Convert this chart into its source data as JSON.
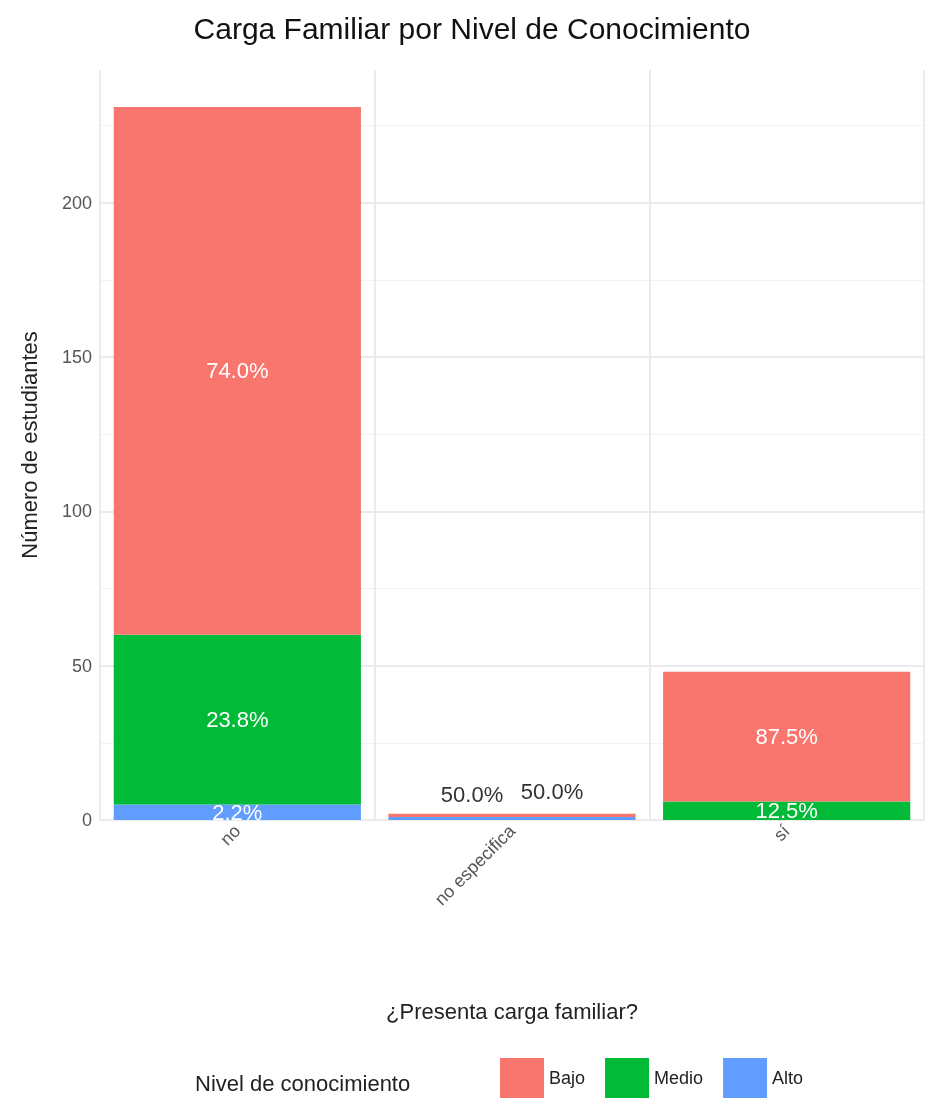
{
  "chart_data": {
    "type": "bar",
    "stacked": true,
    "title": "Carga Familiar por Nivel de Conocimiento",
    "xlabel": "¿Presenta carga familiar?",
    "ylabel": "Número de estudiantes",
    "legend_title": "Nivel de conocimiento",
    "legend": "bottom",
    "grid": true,
    "categories": [
      "no",
      "no especifica",
      "sí"
    ],
    "series": [
      {
        "name": "Alto",
        "color": "#619cff",
        "values": [
          5,
          1,
          null
        ]
      },
      {
        "name": "Medio",
        "color": "#00ba38",
        "values": [
          55,
          null,
          6
        ]
      },
      {
        "name": "Bajo",
        "color": "#f8766d",
        "values": [
          171,
          1,
          42
        ]
      }
    ],
    "annotations": [
      "2.2%",
      "23.8%",
      "74.0%",
      "50.0%",
      "50.0%",
      "12.5%",
      "87.5%"
    ],
    "ylim": [
      0,
      243
    ],
    "yticks": [
      0,
      50,
      100,
      150,
      200
    ]
  }
}
